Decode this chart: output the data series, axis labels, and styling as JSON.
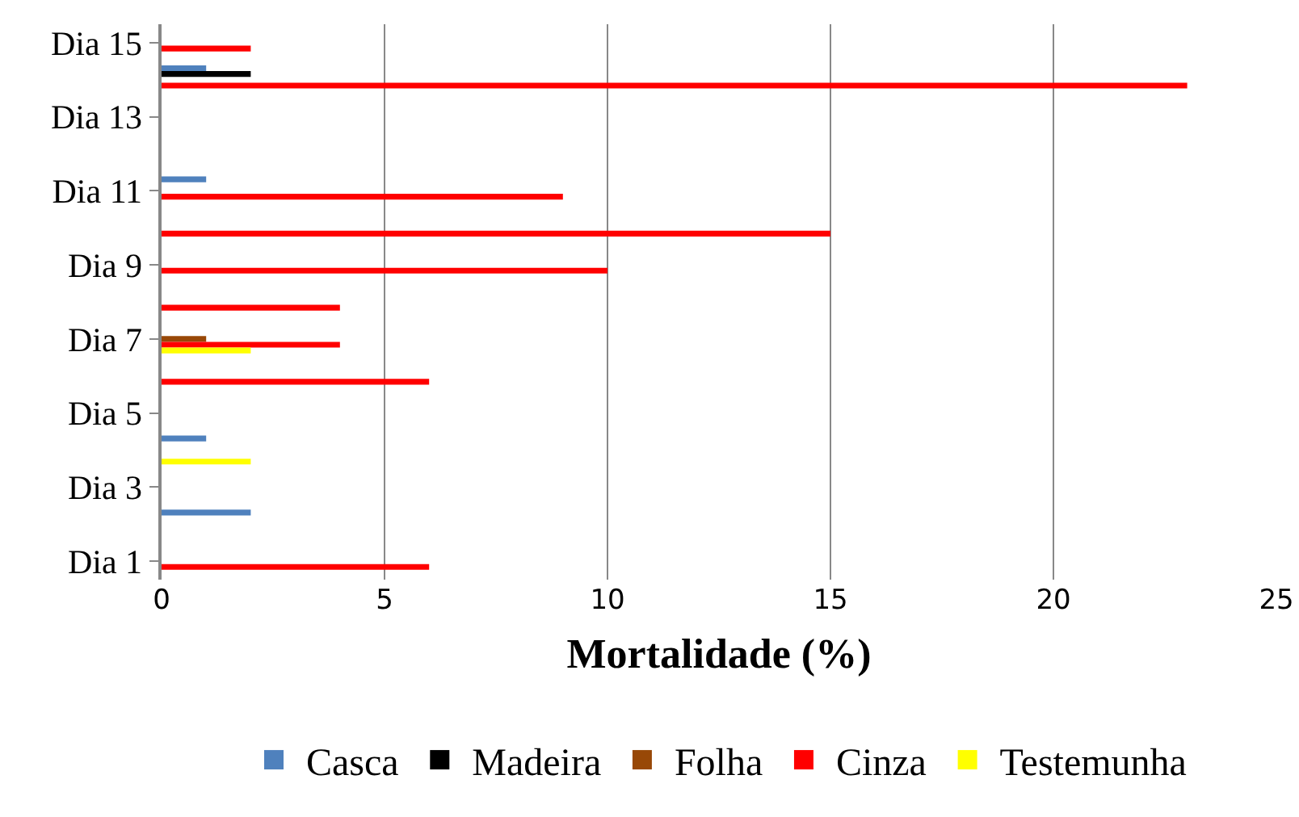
{
  "chart_data": {
    "type": "bar",
    "orientation": "horizontal",
    "xlabel": "Mortalidade (%)",
    "categories": [
      "Dia 15",
      null,
      "Dia 13",
      null,
      "Dia 11",
      null,
      "Dia 9",
      null,
      "Dia 7",
      null,
      "Dia 5",
      null,
      "Dia 3",
      null,
      "Dia 1"
    ],
    "series": [
      {
        "name": "Casca",
        "color": "#4f81bd",
        "values": [
          null,
          1,
          null,
          null,
          1,
          null,
          null,
          null,
          null,
          null,
          null,
          1,
          null,
          2,
          null
        ]
      },
      {
        "name": "Madeira",
        "color": "#000000",
        "values": [
          null,
          2,
          null,
          null,
          null,
          null,
          null,
          null,
          null,
          null,
          null,
          null,
          null,
          null,
          null
        ]
      },
      {
        "name": "Folha",
        "color": "#984807",
        "values": [
          null,
          null,
          null,
          null,
          null,
          null,
          null,
          null,
          1,
          null,
          null,
          null,
          null,
          null,
          null
        ]
      },
      {
        "name": "Cinza",
        "color": "#ff0000",
        "values": [
          2,
          23,
          null,
          null,
          9,
          15,
          10,
          4,
          4,
          6,
          null,
          null,
          null,
          null,
          6
        ]
      },
      {
        "name": "Testemunha",
        "color": "#ffff00",
        "values": [
          null,
          null,
          null,
          null,
          null,
          null,
          null,
          null,
          2,
          null,
          null,
          2,
          null,
          null,
          null
        ]
      }
    ],
    "xlim": [
      0,
      25
    ],
    "xticks": [
      0,
      5,
      10,
      15,
      20,
      25
    ],
    "grid": "x",
    "legend": "bottom"
  }
}
